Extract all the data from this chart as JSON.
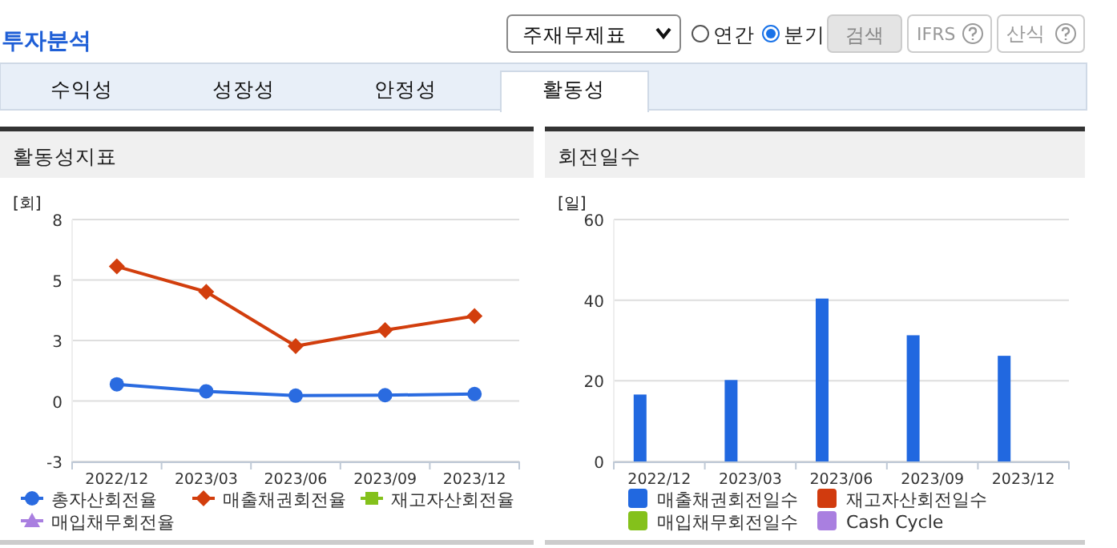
{
  "chart_data": [
    {
      "type": "other",
      "title": "투자분석",
      "annotations": [
        "주재무제표",
        "연간",
        "분기",
        "검색",
        "IFRS",
        "산식",
        "수익성",
        "성장성",
        "안정성",
        "활동성"
      ]
    },
    {
      "type": "line",
      "title": "활동성지표",
      "ylabel": "[회]",
      "categories": [
        "2022/12",
        "2023/03",
        "2023/06",
        "2023/09",
        "2023/12"
      ],
      "ylim": [
        -2.5,
        7.5
      ],
      "yticks": [
        {
          "value": -2.5,
          "label": "-3"
        },
        {
          "value": 0,
          "label": "0"
        },
        {
          "value": 2.5,
          "label": "3"
        },
        {
          "value": 5,
          "label": "5"
        },
        {
          "value": 7.5,
          "label": "8"
        }
      ],
      "grid": "y",
      "legend": "bottom",
      "series": [
        {
          "name": "총자산회전율",
          "color": "#2a6be0",
          "marker": "circle",
          "values": [
            0.69,
            0.4,
            0.22,
            0.24,
            0.29
          ]
        },
        {
          "name": "매출채권회전율",
          "color": "#d23e0d",
          "marker": "diamond",
          "values": [
            5.56,
            4.51,
            2.27,
            2.93,
            3.51
          ]
        },
        {
          "name": "재고자산회전율",
          "color": "#84c11b",
          "marker": "square",
          "values": [
            null,
            null,
            null,
            null,
            null
          ]
        },
        {
          "name": "매입채무회전율",
          "color": "#a97fe0",
          "marker": "triangle",
          "values": [
            null,
            null,
            null,
            null,
            null
          ]
        }
      ]
    },
    {
      "type": "bar",
      "title": "회전일수",
      "ylabel": "[일]",
      "categories": [
        "2022/12",
        "2023/03",
        "2023/06",
        "2023/09",
        "2023/12"
      ],
      "ylim": [
        0,
        60
      ],
      "yticks": [
        0,
        20,
        40,
        60
      ],
      "grid": "y",
      "legend": "bottom",
      "series": [
        {
          "name": "매출채권회전일수",
          "color": "#2168e0",
          "values": [
            16.6,
            20.2,
            40.4,
            31.3,
            26.2
          ]
        },
        {
          "name": "재고자산회전일수",
          "color": "#d13b0e",
          "values": [
            null,
            null,
            null,
            null,
            null
          ]
        },
        {
          "name": "매입채무회전일수",
          "color": "#84c11b",
          "values": [
            null,
            null,
            null,
            null,
            null
          ]
        },
        {
          "name": "Cash Cycle",
          "color": "#a97fe0",
          "values": [
            null,
            null,
            null,
            null,
            null
          ]
        }
      ]
    }
  ]
}
